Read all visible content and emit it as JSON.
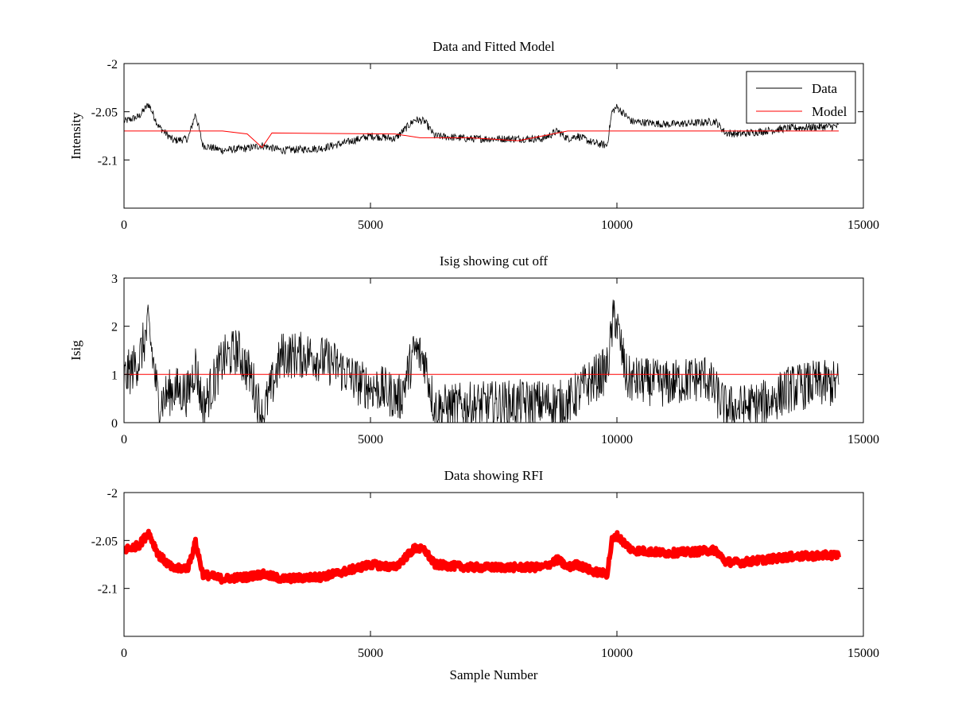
{
  "chart_data": [
    {
      "type": "line",
      "title": "Data and Fitted Model",
      "xlabel": "",
      "ylabel": "Intensity",
      "xlim": [
        0,
        15000
      ],
      "ylim": [
        -2.15,
        -2.0
      ],
      "xticks": [
        0,
        5000,
        10000,
        15000
      ],
      "xtick_labels": [
        "0",
        "5000",
        "10000",
        "15000"
      ],
      "yticks": [
        -2.0,
        -2.05,
        -2.1
      ],
      "ytick_labels": [
        "-2",
        "-2.05",
        "-2.1"
      ],
      "legend": {
        "placement": "top-right",
        "entries": [
          "Data",
          "Model"
        ]
      },
      "grid": false,
      "series": [
        {
          "name": "Data",
          "color": "#000000",
          "style": "line",
          "noise_amplitude": 0.004,
          "x": [
            0,
            300,
            500,
            700,
            1000,
            1300,
            1450,
            1600,
            2000,
            2500,
            2800,
            3200,
            4000,
            4500,
            5000,
            5500,
            5900,
            6100,
            6300,
            7000,
            7500,
            8000,
            8500,
            8800,
            9000,
            9200,
            9500,
            9800,
            9900,
            10000,
            10300,
            11000,
            11500,
            12000,
            12200,
            12500,
            13000,
            13500,
            14000,
            14500
          ],
          "y": [
            -2.06,
            -2.055,
            -2.042,
            -2.065,
            -2.08,
            -2.078,
            -2.052,
            -2.085,
            -2.09,
            -2.088,
            -2.085,
            -2.09,
            -2.088,
            -2.082,
            -2.075,
            -2.078,
            -2.058,
            -2.06,
            -2.075,
            -2.078,
            -2.078,
            -2.078,
            -2.078,
            -2.07,
            -2.078,
            -2.075,
            -2.082,
            -2.085,
            -2.05,
            -2.045,
            -2.06,
            -2.063,
            -2.062,
            -2.06,
            -2.072,
            -2.073,
            -2.07,
            -2.067,
            -2.066,
            -2.065
          ]
        },
        {
          "name": "Model",
          "color": "#ff0000",
          "style": "line",
          "noise_amplitude": 0,
          "x": [
            0,
            2000,
            2500,
            2800,
            3000,
            5500,
            6000,
            7000,
            8000,
            8500,
            9000,
            10000,
            14500
          ],
          "y": [
            -2.07,
            -2.07,
            -2.073,
            -2.087,
            -2.072,
            -2.073,
            -2.077,
            -2.077,
            -2.08,
            -2.075,
            -2.07,
            -2.07,
            -2.07
          ]
        }
      ]
    },
    {
      "type": "line",
      "title": "Isig showing cut off",
      "xlabel": "",
      "ylabel": "Isig",
      "xlim": [
        0,
        15000
      ],
      "ylim": [
        0,
        3
      ],
      "xticks": [
        0,
        5000,
        10000,
        15000
      ],
      "xtick_labels": [
        "0",
        "5000",
        "10000",
        "15000"
      ],
      "yticks": [
        0,
        1,
        2,
        3
      ],
      "ytick_labels": [
        "0",
        "1",
        "2",
        "3"
      ],
      "grid": false,
      "series": [
        {
          "name": "Isig",
          "color": "#000000",
          "style": "line",
          "noise_amplitude": 0.5,
          "x": [
            0,
            300,
            500,
            700,
            1000,
            1300,
            1450,
            1600,
            2000,
            2300,
            2600,
            2800,
            3200,
            3800,
            4300,
            4800,
            5200,
            5600,
            5900,
            6100,
            6300,
            7000,
            8000,
            9000,
            9400,
            9800,
            9950,
            10200,
            11000,
            11800,
            12200,
            12500,
            13000,
            13500,
            14000,
            14500
          ],
          "y": [
            0.9,
            1.3,
            2.0,
            0.4,
            0.7,
            0.6,
            1.2,
            0.3,
            1.3,
            1.5,
            0.9,
            0.1,
            1.4,
            1.4,
            1.2,
            0.8,
            0.7,
            0.5,
            1.5,
            1.3,
            0.3,
            0.35,
            0.4,
            0.4,
            0.8,
            1.1,
            2.3,
            0.9,
            0.8,
            0.95,
            0.3,
            0.3,
            0.4,
            0.7,
            0.8,
            0.8
          ]
        },
        {
          "name": "cut off",
          "color": "#ff0000",
          "style": "line",
          "noise_amplitude": 0,
          "x": [
            0,
            14500
          ],
          "y": [
            1,
            1
          ]
        }
      ]
    },
    {
      "type": "scatter",
      "title": "Data showing RFI",
      "xlabel": "Sample Number",
      "ylabel": "",
      "xlim": [
        0,
        15000
      ],
      "ylim": [
        -2.15,
        -2.0
      ],
      "xticks": [
        0,
        5000,
        10000,
        15000
      ],
      "xtick_labels": [
        "0",
        "5000",
        "10000",
        "15000"
      ],
      "yticks": [
        -2.0,
        -2.05,
        -2.1
      ],
      "ytick_labels": [
        "-2",
        "-2.05",
        "-2.1"
      ],
      "grid": false,
      "series": [
        {
          "name": "RFI",
          "color": "#ff0000",
          "style": "markers",
          "noise_amplitude": 0.004,
          "x": [
            0,
            300,
            500,
            700,
            1000,
            1300,
            1450,
            1600,
            2000,
            2500,
            2800,
            3200,
            4000,
            4500,
            5000,
            5500,
            5900,
            6100,
            6300,
            7000,
            7500,
            8000,
            8500,
            8800,
            9000,
            9200,
            9500,
            9800,
            9900,
            10000,
            10300,
            11000,
            11500,
            12000,
            12200,
            12500,
            13000,
            13500,
            14000,
            14500
          ],
          "y": [
            -2.06,
            -2.055,
            -2.042,
            -2.065,
            -2.08,
            -2.078,
            -2.052,
            -2.085,
            -2.09,
            -2.088,
            -2.085,
            -2.09,
            -2.088,
            -2.082,
            -2.075,
            -2.078,
            -2.058,
            -2.06,
            -2.075,
            -2.078,
            -2.078,
            -2.078,
            -2.078,
            -2.07,
            -2.078,
            -2.075,
            -2.082,
            -2.085,
            -2.05,
            -2.045,
            -2.06,
            -2.063,
            -2.062,
            -2.06,
            -2.072,
            -2.073,
            -2.07,
            -2.067,
            -2.066,
            -2.065
          ]
        }
      ]
    }
  ]
}
